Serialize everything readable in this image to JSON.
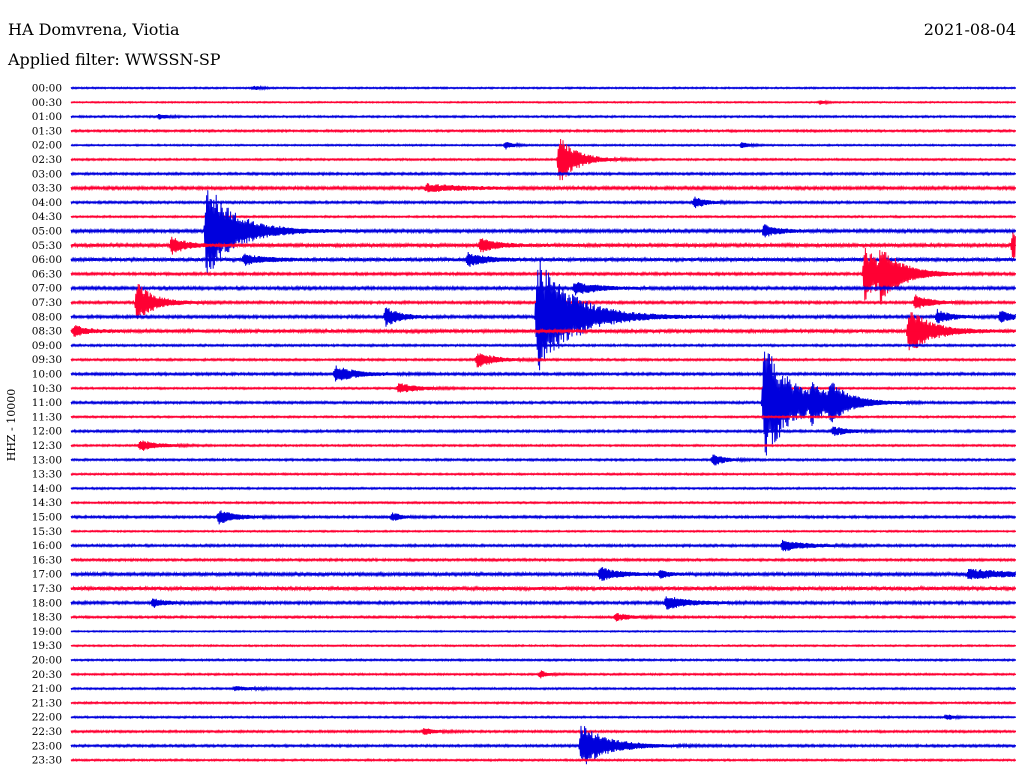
{
  "header": {
    "station": "HA Domvrena, Viotia",
    "date": "2021-08-04",
    "filter": "Applied filter: WWSSN-SP"
  },
  "chart_data": {
    "type": "line",
    "ylabel": "HHZ - 10000",
    "colors": [
      "#0000dd",
      "#ff0033"
    ],
    "row_labels": [
      "00:00",
      "00:30",
      "01:00",
      "01:30",
      "02:00",
      "02:30",
      "03:00",
      "03:30",
      "04:00",
      "04:30",
      "05:00",
      "05:30",
      "06:00",
      "06:30",
      "07:00",
      "07:30",
      "08:00",
      "08:30",
      "09:00",
      "09:30",
      "10:00",
      "10:30",
      "11:00",
      "11:30",
      "12:00",
      "12:30",
      "13:00",
      "13:30",
      "14:00",
      "14:30",
      "15:00",
      "15:30",
      "16:00",
      "16:30",
      "17:00",
      "17:30",
      "18:00",
      "18:30",
      "19:00",
      "19:30",
      "20:00",
      "20:30",
      "21:00",
      "21:30",
      "22:00",
      "22:30",
      "23:00",
      "23:30"
    ],
    "x_range_minutes": [
      0,
      30
    ],
    "noise_levels": [
      0.7,
      0.6,
      0.8,
      0.9,
      0.7,
      0.8,
      1.0,
      1.3,
      1.0,
      0.8,
      1.4,
      1.5,
      1.6,
      1.1,
      1.3,
      1.1,
      1.2,
      1.6,
      0.9,
      0.9,
      1.1,
      0.8,
      1.0,
      0.8,
      1.0,
      0.8,
      0.9,
      0.8,
      0.8,
      0.8,
      1.0,
      0.7,
      1.0,
      1.0,
      1.4,
      1.6,
      1.2,
      0.9,
      0.6,
      0.7,
      0.8,
      0.8,
      0.8,
      0.8,
      0.8,
      0.9,
      1.0,
      0.8
    ],
    "events": [
      {
        "row": 0,
        "minute": 5.8,
        "amplitude": 2,
        "duration": 0.5
      },
      {
        "row": 1,
        "minute": 23.8,
        "amplitude": 2,
        "duration": 0.4
      },
      {
        "row": 2,
        "minute": 2.8,
        "amplitude": 3,
        "duration": 0.5
      },
      {
        "row": 4,
        "minute": 13.8,
        "amplitude": 4,
        "duration": 0.5
      },
      {
        "row": 4,
        "minute": 21.3,
        "amplitude": 3,
        "duration": 0.5
      },
      {
        "row": 5,
        "minute": 15.5,
        "amplitude": 25,
        "duration": 1.2
      },
      {
        "row": 7,
        "minute": 11.3,
        "amplitude": 4,
        "duration": 2.5
      },
      {
        "row": 8,
        "minute": 19.8,
        "amplitude": 6,
        "duration": 0.8
      },
      {
        "row": 10,
        "minute": 4.3,
        "amplitude": 50,
        "duration": 2.0
      },
      {
        "row": 10,
        "minute": 22.0,
        "amplitude": 6,
        "duration": 1.0
      },
      {
        "row": 11,
        "minute": 3.2,
        "amplitude": 9,
        "duration": 1.0
      },
      {
        "row": 11,
        "minute": 13.0,
        "amplitude": 7,
        "duration": 1.2
      },
      {
        "row": 11,
        "minute": 29.9,
        "amplitude": 14,
        "duration": 1.0
      },
      {
        "row": 12,
        "minute": 12.6,
        "amplitude": 7,
        "duration": 1.2
      },
      {
        "row": 12,
        "minute": 5.5,
        "amplitude": 5,
        "duration": 1.5
      },
      {
        "row": 13,
        "minute": 25.2,
        "amplitude": 28,
        "duration": 1.5
      },
      {
        "row": 13,
        "minute": 25.7,
        "amplitude": 18,
        "duration": 1.5
      },
      {
        "row": 14,
        "minute": 16.0,
        "amplitude": 7,
        "duration": 1.5
      },
      {
        "row": 15,
        "minute": 2.1,
        "amplitude": 20,
        "duration": 1.2
      },
      {
        "row": 15,
        "minute": 26.8,
        "amplitude": 8,
        "duration": 1.0
      },
      {
        "row": 16,
        "minute": 10.0,
        "amplitude": 10,
        "duration": 1.0
      },
      {
        "row": 16,
        "minute": 14.8,
        "amplitude": 60,
        "duration": 2.5
      },
      {
        "row": 16,
        "minute": 27.5,
        "amplitude": 7,
        "duration": 1.0
      },
      {
        "row": 16,
        "minute": 29.5,
        "amplitude": 6,
        "duration": 1.0
      },
      {
        "row": 17,
        "minute": 0.1,
        "amplitude": 6,
        "duration": 0.8
      },
      {
        "row": 17,
        "minute": 26.6,
        "amplitude": 24,
        "duration": 1.5
      },
      {
        "row": 19,
        "minute": 12.9,
        "amplitude": 8,
        "duration": 1.2
      },
      {
        "row": 20,
        "minute": 8.4,
        "amplitude": 8,
        "duration": 1.5
      },
      {
        "row": 21,
        "minute": 10.4,
        "amplitude": 5,
        "duration": 1.5
      },
      {
        "row": 22,
        "minute": 22.0,
        "amplitude": 60,
        "duration": 2.0
      },
      {
        "row": 22,
        "minute": 23.5,
        "amplitude": 14,
        "duration": 1.0
      },
      {
        "row": 22,
        "minute": 24.1,
        "amplitude": 16,
        "duration": 1.2
      },
      {
        "row": 24,
        "minute": 24.2,
        "amplitude": 5,
        "duration": 1.0
      },
      {
        "row": 25,
        "minute": 2.2,
        "amplitude": 6,
        "duration": 1.2
      },
      {
        "row": 26,
        "minute": 20.4,
        "amplitude": 6,
        "duration": 0.8
      },
      {
        "row": 30,
        "minute": 4.7,
        "amplitude": 7,
        "duration": 1.2
      },
      {
        "row": 30,
        "minute": 10.2,
        "amplitude": 5,
        "duration": 0.6
      },
      {
        "row": 32,
        "minute": 22.6,
        "amplitude": 6,
        "duration": 1.5
      },
      {
        "row": 34,
        "minute": 16.8,
        "amplitude": 7,
        "duration": 1.2
      },
      {
        "row": 34,
        "minute": 18.7,
        "amplitude": 4,
        "duration": 0.6
      },
      {
        "row": 34,
        "minute": 28.5,
        "amplitude": 5,
        "duration": 3.0
      },
      {
        "row": 36,
        "minute": 2.6,
        "amplitude": 5,
        "duration": 0.8
      },
      {
        "row": 36,
        "minute": 18.9,
        "amplitude": 7,
        "duration": 1.5
      },
      {
        "row": 37,
        "minute": 17.3,
        "amplitude": 4,
        "duration": 1.0
      },
      {
        "row": 41,
        "minute": 14.9,
        "amplitude": 4,
        "duration": 0.5
      },
      {
        "row": 42,
        "minute": 5.2,
        "amplitude": 2,
        "duration": 1.5
      },
      {
        "row": 44,
        "minute": 27.8,
        "amplitude": 3,
        "duration": 0.5
      },
      {
        "row": 45,
        "minute": 11.2,
        "amplitude": 3,
        "duration": 1.0
      },
      {
        "row": 46,
        "minute": 16.2,
        "amplitude": 22,
        "duration": 1.8
      }
    ]
  }
}
